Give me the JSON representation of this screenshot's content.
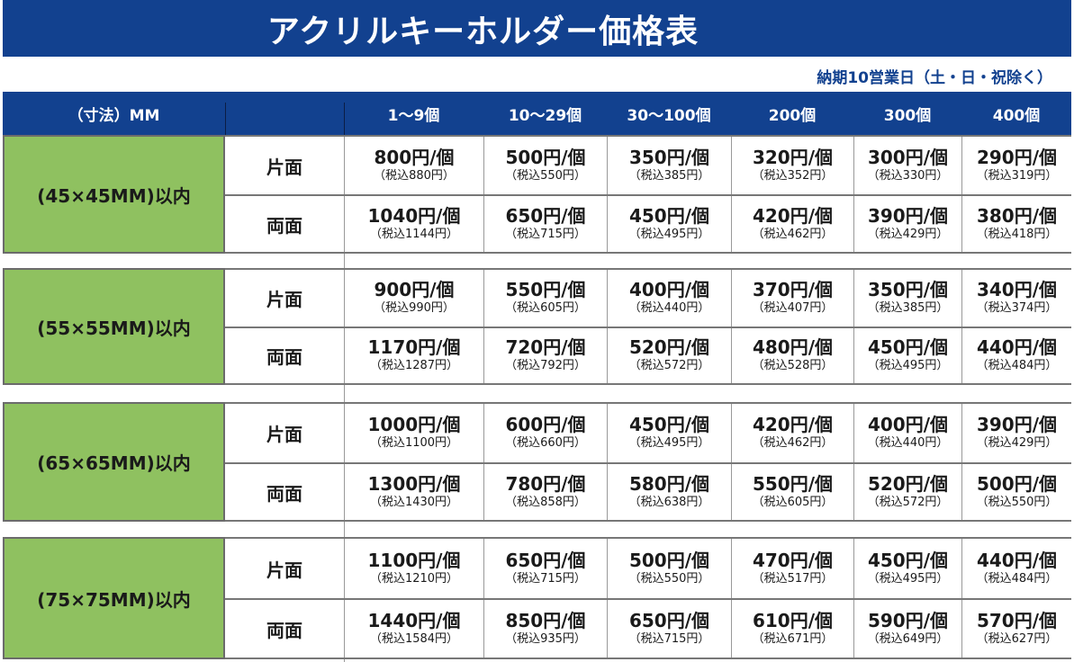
{
  "title": "アクリルキーホルダー価格表",
  "subtitle": "納期10営業日（土・日・祝除く）",
  "colors": {
    "header_blue": "#12418f",
    "size_green": "#8fc160"
  },
  "header": {
    "size_label": "（寸法）MM",
    "side_label": "",
    "quantities": [
      "1〜9個",
      "10〜29個",
      "30〜100個",
      "200個",
      "300個",
      "400個"
    ]
  },
  "groups": [
    {
      "size": "(45×45MM)以内",
      "rows": [
        {
          "side": "片面",
          "prices": [
            {
              "price": "800円/個",
              "tax": "（税込880円）"
            },
            {
              "price": "500円/個",
              "tax": "（税込550円）"
            },
            {
              "price": "350円/個",
              "tax": "（税込385円）"
            },
            {
              "price": "320円/個",
              "tax": "（税込352円）"
            },
            {
              "price": "300円/個",
              "tax": "（税込330円）"
            },
            {
              "price": "290円/個",
              "tax": "（税込319円）"
            }
          ]
        },
        {
          "side": "両面",
          "prices": [
            {
              "price": "1040円/個",
              "tax": "（税込1144円）"
            },
            {
              "price": "650円/個",
              "tax": "（税込715円）"
            },
            {
              "price": "450円/個",
              "tax": "（税込495円）"
            },
            {
              "price": "420円/個",
              "tax": "（税込462円）"
            },
            {
              "price": "390円/個",
              "tax": "（税込429円）"
            },
            {
              "price": "380円/個",
              "tax": "（税込418円）"
            }
          ]
        }
      ]
    },
    {
      "size": "(55×55MM)以内",
      "rows": [
        {
          "side": "片面",
          "prices": [
            {
              "price": "900円/個",
              "tax": "（税込990円）"
            },
            {
              "price": "550円/個",
              "tax": "（税込605円）"
            },
            {
              "price": "400円/個",
              "tax": "（税込440円）"
            },
            {
              "price": "370円/個",
              "tax": "（税込407円）"
            },
            {
              "price": "350円/個",
              "tax": "（税込385円）"
            },
            {
              "price": "340円/個",
              "tax": "（税込374円）"
            }
          ]
        },
        {
          "side": "両面",
          "prices": [
            {
              "price": "1170円/個",
              "tax": "（税込1287円）"
            },
            {
              "price": "720円/個",
              "tax": "（税込792円）"
            },
            {
              "price": "520円/個",
              "tax": "（税込572円）"
            },
            {
              "price": "480円/個",
              "tax": "（税込528円）"
            },
            {
              "price": "450円/個",
              "tax": "（税込495円）"
            },
            {
              "price": "440円/個",
              "tax": "（税込484円）"
            }
          ]
        }
      ]
    },
    {
      "size": "(65×65MM)以内",
      "rows": [
        {
          "side": "片面",
          "prices": [
            {
              "price": "1000円/個",
              "tax": "（税込1100円）"
            },
            {
              "price": "600円/個",
              "tax": "（税込660円）"
            },
            {
              "price": "450円/個",
              "tax": "（税込495円）"
            },
            {
              "price": "420円/個",
              "tax": "（税込462円）"
            },
            {
              "price": "400円/個",
              "tax": "（税込440円）"
            },
            {
              "price": "390円/個",
              "tax": "（税込429円）"
            }
          ]
        },
        {
          "side": "両面",
          "prices": [
            {
              "price": "1300円/個",
              "tax": "（税込1430円）"
            },
            {
              "price": "780円/個",
              "tax": "（税込858円）"
            },
            {
              "price": "580円/個",
              "tax": "（税込638円）"
            },
            {
              "price": "550円/個",
              "tax": "（税込605円）"
            },
            {
              "price": "520円/個",
              "tax": "（税込572円）"
            },
            {
              "price": "500円/個",
              "tax": "（税込550円）"
            }
          ]
        }
      ]
    },
    {
      "size": "(75×75MM)以内",
      "rows": [
        {
          "side": "片面",
          "prices": [
            {
              "price": "1100円/個",
              "tax": "（税込1210円）"
            },
            {
              "price": "650円/個",
              "tax": "（税込715円）"
            },
            {
              "price": "500円/個",
              "tax": "（税込550円）"
            },
            {
              "price": "470円/個",
              "tax": "（税込517円）"
            },
            {
              "price": "450円/個",
              "tax": "（税込495円）"
            },
            {
              "price": "440円/個",
              "tax": "（税込484円）"
            }
          ]
        },
        {
          "side": "両面",
          "prices": [
            {
              "price": "1440円/個",
              "tax": "（税込1584円）"
            },
            {
              "price": "850円/個",
              "tax": "（税込935円）"
            },
            {
              "price": "650円/個",
              "tax": "（税込715円）"
            },
            {
              "price": "610円/個",
              "tax": "（税込671円）"
            },
            {
              "price": "590円/個",
              "tax": "（税込649円）"
            },
            {
              "price": "570円/個",
              "tax": "（税込627円）"
            }
          ]
        }
      ]
    }
  ]
}
